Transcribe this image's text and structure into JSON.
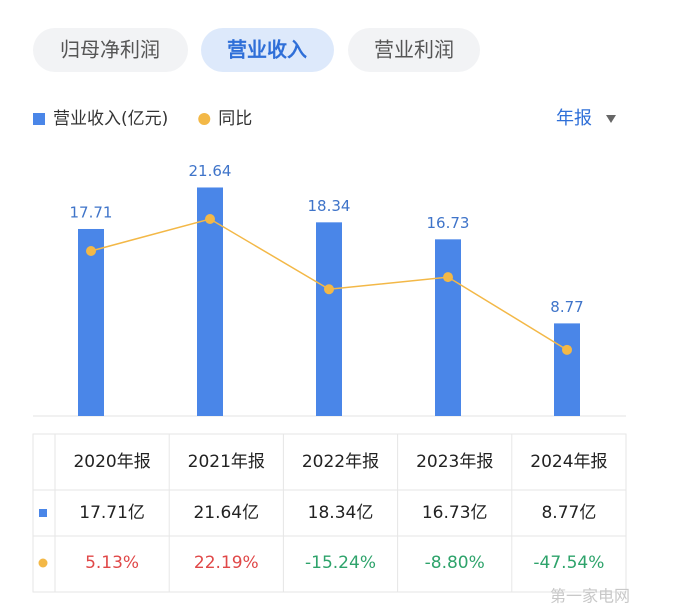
{
  "tabs": [
    "归母净利润",
    "营业收入",
    "营业利润"
  ],
  "period_selector": "年报",
  "watermark": "第一家电网",
  "chart_data": {
    "type": "bar",
    "categories": [
      "2020年报",
      "2021年报",
      "2022年报",
      "2023年报",
      "2024年报"
    ],
    "ylim": [
      0,
      25
    ],
    "y2lim": [
      -82.8,
      57.9
    ],
    "series": [
      {
        "name": "营业收入(亿元)",
        "type": "bar",
        "color": "#4a86e8",
        "values": [
          17.71,
          21.64,
          18.34,
          16.73,
          8.77
        ],
        "value_labels": [
          "17.71亿",
          "21.64亿",
          "18.34亿",
          "16.73亿",
          "8.77亿"
        ]
      },
      {
        "name": "同比",
        "type": "line",
        "axis": "y2",
        "color": "#f3b847",
        "values": [
          5.13,
          22.19,
          -15.24,
          -8.8,
          -47.54
        ],
        "value_labels": [
          "5.13%",
          "22.19%",
          "-15.24%",
          "-8.80%",
          "-47.54%"
        ]
      }
    ]
  }
}
